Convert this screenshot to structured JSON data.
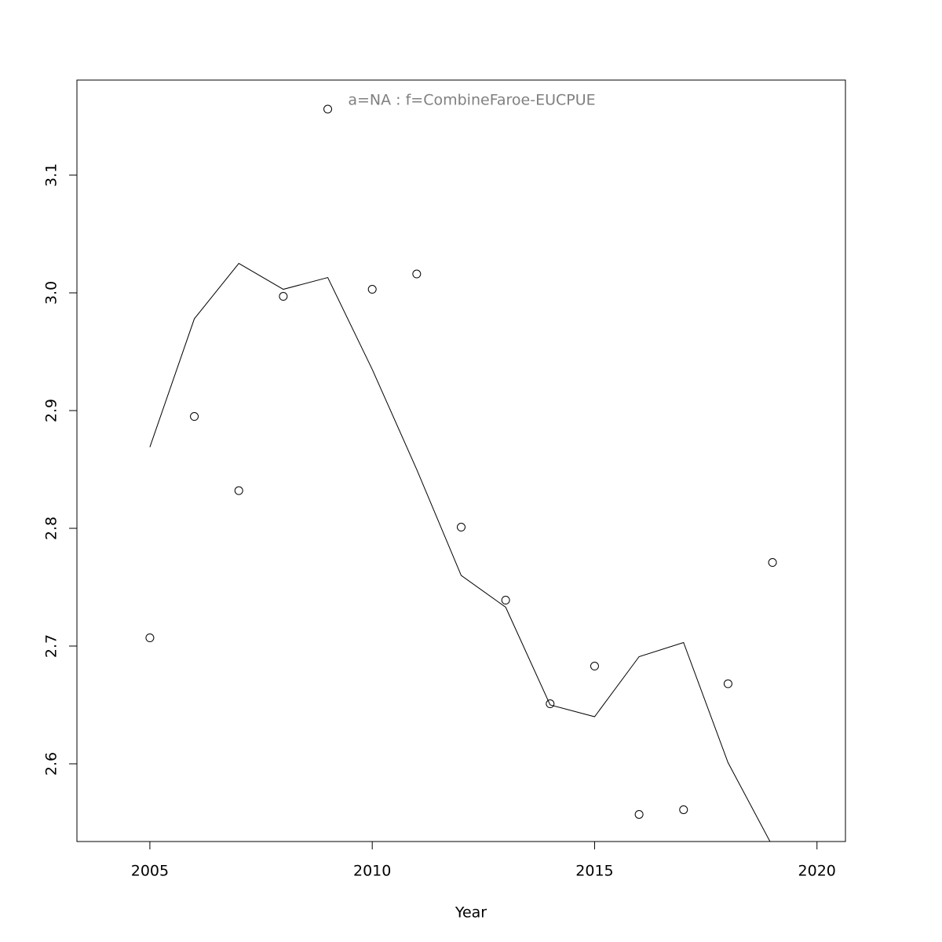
{
  "chart_data": {
    "type": "line",
    "title": "a=NA  :  f=CombineFaroe-EUCPUE",
    "x_label": "Year",
    "x": [
      2005,
      2006,
      2007,
      2008,
      2009,
      2010,
      2011,
      2012,
      2013,
      2014,
      2015,
      2016,
      2017,
      2018,
      2019
    ],
    "series": [
      {
        "style": "points",
        "color": "#000000",
        "values": [
          2.707,
          2.895,
          2.832,
          2.997,
          3.156,
          3.003,
          3.016,
          2.801,
          2.739,
          2.651,
          2.683,
          2.557,
          2.561,
          2.668,
          2.771
        ]
      },
      {
        "style": "line",
        "color": "#000000",
        "values": [
          2.869,
          2.978,
          3.025,
          3.003,
          3.013,
          2.935,
          2.85,
          2.76,
          2.733,
          2.65,
          2.64,
          2.691,
          2.703,
          2.601,
          2.53
        ]
      }
    ],
    "xlim": [
      2003.36,
      2020.64
    ],
    "xticks": [
      2005,
      2010,
      2015,
      2020
    ],
    "ylim": [
      2.534,
      3.1807
    ],
    "yticks": [
      2.6,
      2.7,
      2.8,
      2.9,
      {
        "value": 3.0,
        "label": "3.0"
      },
      3.1
    ],
    "grid": false
  }
}
